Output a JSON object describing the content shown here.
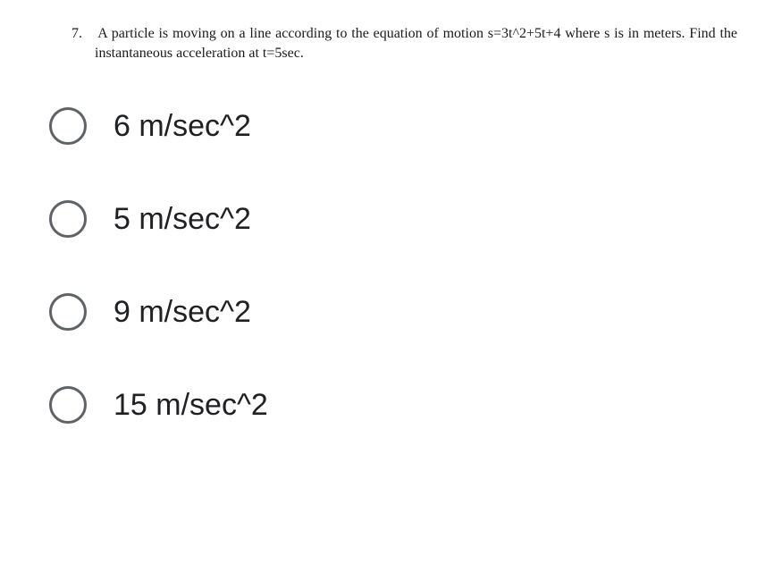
{
  "question": {
    "number": "7.",
    "text": "A particle is moving on a line according to the equation of motion s=3t^2+5t+4 where s is in meters. Find the instantaneous acceleration at t=5sec."
  },
  "options": [
    {
      "label": "6 m/sec^2"
    },
    {
      "label": "5 m/sec^2"
    },
    {
      "label": "9 m/sec^2"
    },
    {
      "label": "15 m/sec^2"
    }
  ],
  "styling": {
    "question_number_fontsize": 16,
    "question_text_fontsize": 16,
    "question_font_family": "Times New Roman",
    "question_color": "#1a1a1a",
    "option_fontsize": 34,
    "option_font_family": "Arial",
    "option_color": "#202124",
    "radio_border_color": "#5f6367",
    "radio_border_width": 3,
    "radio_diameter": 42,
    "background_color": "#ffffff",
    "option_gap": 62
  }
}
